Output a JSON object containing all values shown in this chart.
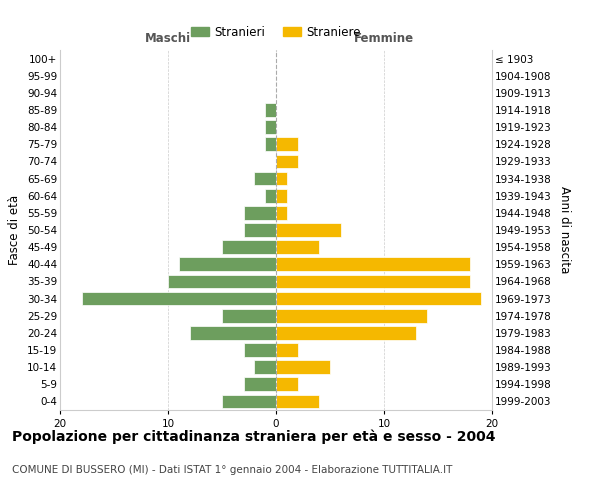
{
  "age_groups": [
    "0-4",
    "5-9",
    "10-14",
    "15-19",
    "20-24",
    "25-29",
    "30-34",
    "35-39",
    "40-44",
    "45-49",
    "50-54",
    "55-59",
    "60-64",
    "65-69",
    "70-74",
    "75-79",
    "80-84",
    "85-89",
    "90-94",
    "95-99",
    "100+"
  ],
  "birth_years": [
    "1999-2003",
    "1994-1998",
    "1989-1993",
    "1984-1988",
    "1979-1983",
    "1974-1978",
    "1969-1973",
    "1964-1968",
    "1959-1963",
    "1954-1958",
    "1949-1953",
    "1944-1948",
    "1939-1943",
    "1934-1938",
    "1929-1933",
    "1924-1928",
    "1919-1923",
    "1914-1918",
    "1909-1913",
    "1904-1908",
    "≤ 1903"
  ],
  "males": [
    5,
    3,
    2,
    3,
    8,
    5,
    18,
    10,
    9,
    5,
    3,
    3,
    1,
    2,
    0,
    1,
    1,
    1,
    0,
    0,
    0
  ],
  "females": [
    4,
    2,
    5,
    2,
    13,
    14,
    19,
    18,
    18,
    4,
    6,
    1,
    1,
    1,
    2,
    2,
    0,
    0,
    0,
    0,
    0
  ],
  "male_color": "#6d9e5e",
  "female_color": "#f5b800",
  "background_color": "#ffffff",
  "grid_color": "#cccccc",
  "title": "Popolazione per cittadinanza straniera per età e sesso - 2004",
  "subtitle": "COMUNE DI BUSSERO (MI) - Dati ISTAT 1° gennaio 2004 - Elaborazione TUTTITALIA.IT",
  "xlabel_left": "Maschi",
  "xlabel_right": "Femmine",
  "ylabel_left": "Fasce di età",
  "ylabel_right": "Anni di nascita",
  "legend_male": "Stranieri",
  "legend_female": "Straniere",
  "xlim": 20,
  "title_fontsize": 10,
  "subtitle_fontsize": 7.5,
  "tick_fontsize": 7.5,
  "label_fontsize": 8.5
}
